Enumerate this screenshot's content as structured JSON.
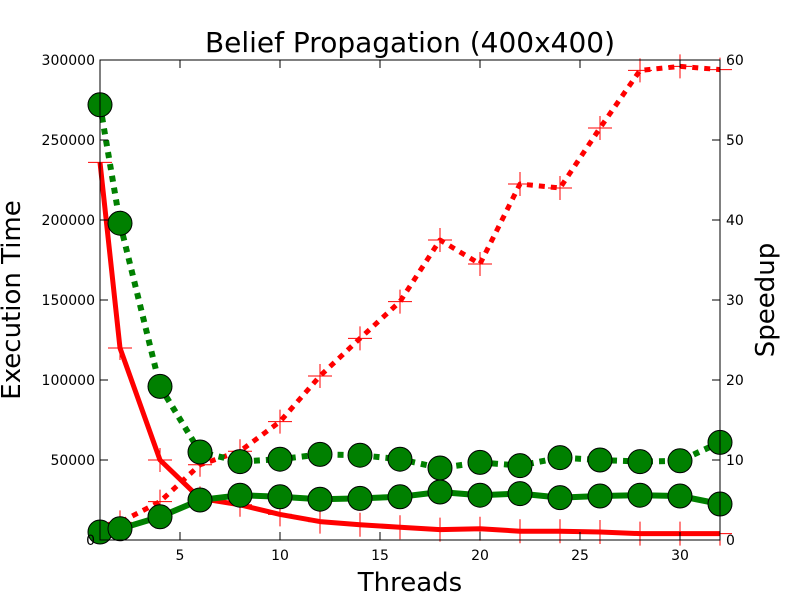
{
  "chart_data": {
    "type": "line",
    "title": "Belief Propagation (400x400)",
    "xlabel": "Threads",
    "ylabel": "Execution Time",
    "y2label": "Speedup",
    "xlim": [
      1,
      32
    ],
    "ylim": [
      0,
      300000
    ],
    "y2lim": [
      0,
      60
    ],
    "x_ticks": [
      5,
      10,
      15,
      20,
      25,
      30
    ],
    "y_ticks": [
      0,
      50000,
      100000,
      150000,
      200000,
      250000,
      300000
    ],
    "y2_ticks": [
      0,
      10,
      20,
      30,
      40,
      50,
      60
    ],
    "grid": false,
    "series": [
      {
        "axis": "left",
        "color": "#ff0000",
        "style": "solid",
        "marker": "plus",
        "x": [
          1,
          2,
          4,
          6,
          8,
          10,
          12,
          14,
          16,
          18,
          20,
          22,
          24,
          26,
          28,
          30,
          32
        ],
        "values": [
          236000,
          120000,
          50000,
          26000,
          22000,
          16000,
          11500,
          9500,
          8000,
          6500,
          7000,
          5500,
          5500,
          5000,
          4000,
          4000,
          4000
        ]
      },
      {
        "axis": "right",
        "color": "#ff0000",
        "style": "dotted",
        "marker": "plus",
        "x": [
          1,
          2,
          4,
          6,
          8,
          10,
          12,
          14,
          16,
          18,
          20,
          22,
          24,
          26,
          28,
          30,
          32
        ],
        "values": [
          1,
          2.2,
          4.8,
          9.4,
          11.1,
          14.8,
          20.5,
          25.2,
          29.8,
          37.5,
          34.5,
          44.5,
          44.0,
          51.5,
          58.7,
          59.2,
          58.8
        ]
      },
      {
        "axis": "left",
        "color": "#008000",
        "style": "dotted",
        "marker": "circle",
        "x": [
          1,
          2,
          4,
          6,
          8,
          10,
          12,
          14,
          16,
          18,
          20,
          22,
          24,
          26,
          28,
          30,
          32
        ],
        "values": [
          272000,
          198000,
          96000,
          55000,
          49000,
          50500,
          53500,
          53000,
          50500,
          45000,
          48500,
          46500,
          51500,
          50000,
          49000,
          49500,
          61000
        ]
      },
      {
        "axis": "right",
        "color": "#008000",
        "style": "solid",
        "marker": "circle",
        "x": [
          1,
          2,
          4,
          6,
          8,
          10,
          12,
          14,
          16,
          18,
          20,
          22,
          24,
          26,
          28,
          30,
          32
        ],
        "values": [
          1,
          1.4,
          2.9,
          5.0,
          5.6,
          5.4,
          5.1,
          5.2,
          5.4,
          6.0,
          5.6,
          5.8,
          5.3,
          5.5,
          5.6,
          5.5,
          4.5
        ]
      }
    ]
  }
}
